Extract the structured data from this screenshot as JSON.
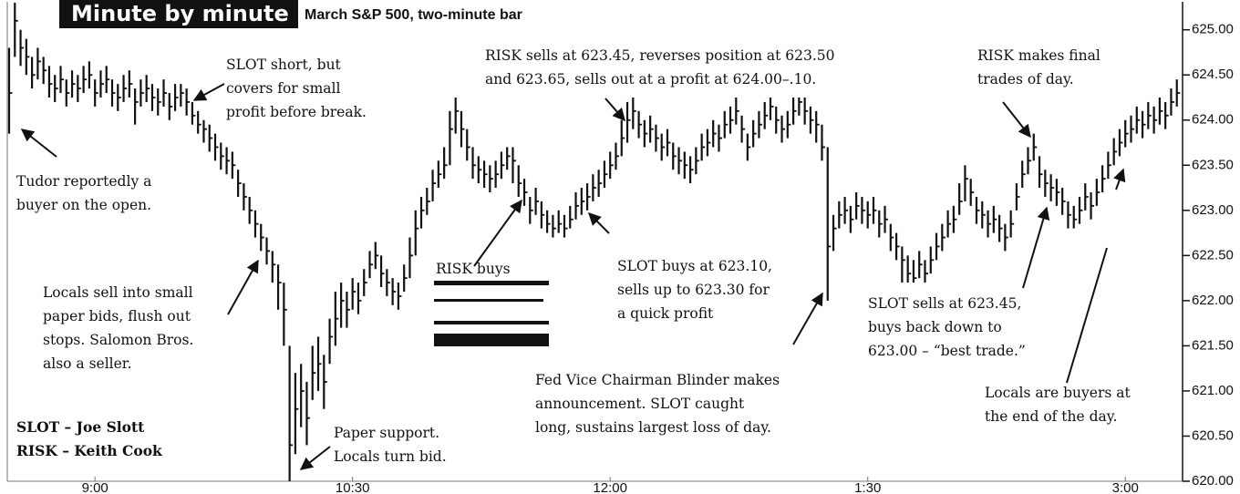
{
  "chart_data": {
    "type": "ohlc",
    "title": "Minute by minute",
    "subtitle": "March S&P 500, two-minute bar",
    "color": "#111111",
    "x": [
      0,
      2,
      4,
      6,
      8,
      10,
      12,
      14,
      16,
      18,
      20,
      22,
      24,
      26,
      28,
      30,
      32,
      34,
      36,
      38,
      40,
      42,
      44,
      46,
      48,
      50,
      52,
      54,
      56,
      58,
      60,
      62,
      64,
      66,
      68,
      70,
      72,
      74,
      76,
      78,
      80,
      82,
      84,
      86,
      88,
      90,
      92,
      94,
      96,
      98,
      100,
      102,
      104,
      106,
      108,
      110,
      112,
      114,
      116,
      118,
      120,
      122,
      124,
      126,
      128,
      130,
      132,
      134,
      136,
      138,
      140,
      142,
      144,
      146,
      148,
      150,
      152,
      154,
      156,
      158,
      160,
      162,
      164,
      166,
      168,
      170,
      172,
      174,
      176,
      178,
      180,
      182,
      184,
      186,
      188,
      190,
      192,
      194,
      196,
      198,
      200,
      202,
      204,
      206,
      208,
      210,
      212,
      214,
      216,
      218,
      220,
      222,
      224,
      226,
      228,
      230,
      232,
      234,
      236,
      238,
      240,
      242,
      244,
      246,
      248,
      250,
      252,
      254,
      256,
      258,
      260,
      262,
      264,
      266,
      268,
      270,
      272,
      274,
      276,
      278,
      280,
      282,
      284,
      286,
      288,
      290,
      292,
      294,
      296,
      298,
      300,
      302,
      304,
      306,
      308,
      310,
      312,
      314,
      316,
      318,
      320,
      322,
      324,
      326,
      328,
      330,
      332,
      334,
      336,
      338,
      340,
      342,
      344,
      346,
      348,
      350,
      352,
      354,
      356,
      358,
      360,
      362,
      364,
      366,
      368,
      370,
      372,
      374,
      376,
      378,
      380,
      382,
      384,
      386,
      388,
      390,
      392,
      394,
      396,
      398,
      400,
      402,
      404,
      406,
      408
    ],
    "high": [
      624.8,
      625.3,
      625.0,
      624.9,
      624.7,
      624.8,
      624.7,
      624.6,
      624.5,
      624.6,
      624.45,
      624.55,
      624.5,
      624.6,
      624.65,
      624.45,
      624.55,
      624.6,
      624.45,
      624.4,
      624.5,
      624.55,
      624.35,
      624.45,
      624.5,
      624.4,
      624.35,
      624.45,
      624.3,
      624.4,
      624.4,
      624.35,
      624.2,
      624.1,
      624.0,
      623.95,
      623.85,
      623.75,
      623.7,
      623.65,
      623.45,
      623.3,
      623.15,
      623.0,
      622.85,
      622.7,
      622.55,
      622.4,
      622.2,
      621.5,
      621.2,
      621.3,
      621.1,
      621.5,
      621.6,
      621.4,
      621.8,
      622.1,
      622.2,
      622.1,
      622.25,
      622.2,
      622.35,
      622.55,
      622.65,
      622.5,
      622.35,
      622.25,
      622.2,
      622.4,
      622.7,
      623.0,
      623.15,
      623.25,
      623.45,
      623.55,
      623.7,
      624.1,
      624.25,
      624.1,
      623.9,
      623.7,
      623.6,
      623.55,
      623.5,
      623.55,
      623.65,
      623.7,
      623.7,
      623.5,
      623.35,
      623.15,
      623.25,
      623.1,
      623.0,
      622.95,
      623.0,
      622.95,
      623.05,
      623.2,
      623.25,
      623.3,
      623.4,
      623.45,
      623.55,
      623.65,
      623.75,
      624.0,
      624.2,
      624.25,
      624.1,
      624.0,
      624.05,
      623.95,
      623.85,
      623.9,
      623.75,
      623.7,
      623.65,
      623.6,
      623.7,
      623.85,
      623.9,
      624.0,
      623.95,
      624.1,
      624.15,
      624.25,
      624.05,
      623.85,
      624.0,
      624.1,
      624.2,
      624.25,
      624.15,
      624.05,
      624.1,
      624.25,
      624.25,
      624.25,
      624.15,
      624.1,
      623.95,
      623.7,
      622.95,
      623.1,
      623.15,
      623.05,
      623.2,
      623.15,
      623.1,
      623.15,
      623.0,
      623.05,
      622.85,
      622.75,
      622.6,
      622.5,
      622.45,
      622.55,
      622.45,
      622.6,
      622.75,
      622.85,
      623.0,
      623.05,
      623.3,
      623.5,
      623.35,
      623.15,
      623.1,
      623.0,
      623.05,
      622.95,
      622.85,
      623.0,
      623.3,
      623.55,
      623.7,
      623.85,
      623.6,
      623.45,
      623.4,
      623.35,
      623.25,
      623.1,
      623.05,
      623.15,
      623.3,
      623.2,
      623.35,
      623.5,
      623.65,
      623.8,
      623.9,
      624.0,
      624.05,
      624.15,
      624.1,
      624.2,
      624.15,
      624.25,
      624.2,
      624.35,
      624.45
    ],
    "low": [
      623.85,
      624.7,
      624.6,
      624.5,
      624.35,
      624.45,
      624.4,
      624.25,
      624.2,
      624.3,
      624.15,
      624.25,
      624.2,
      624.3,
      624.35,
      624.15,
      624.25,
      624.3,
      624.15,
      624.1,
      624.2,
      624.25,
      623.95,
      624.15,
      624.2,
      624.1,
      624.05,
      624.15,
      624.0,
      624.1,
      624.15,
      624.05,
      623.95,
      623.85,
      623.75,
      623.65,
      623.55,
      623.45,
      623.4,
      623.35,
      623.15,
      623.0,
      622.85,
      622.7,
      622.55,
      622.4,
      622.2,
      621.9,
      621.5,
      620.0,
      620.3,
      620.6,
      620.4,
      620.9,
      621.0,
      620.8,
      621.3,
      621.5,
      621.7,
      621.7,
      621.9,
      621.85,
      622.05,
      622.25,
      622.35,
      622.15,
      622.05,
      621.95,
      621.9,
      622.1,
      622.25,
      622.5,
      622.8,
      622.95,
      623.1,
      623.25,
      623.35,
      623.5,
      623.85,
      623.7,
      623.55,
      623.35,
      623.3,
      623.25,
      623.2,
      623.25,
      623.35,
      623.45,
      623.3,
      623.15,
      623.05,
      622.85,
      622.95,
      622.8,
      622.75,
      622.7,
      622.75,
      622.7,
      622.8,
      622.9,
      622.95,
      623.0,
      623.1,
      623.15,
      623.25,
      623.35,
      623.45,
      623.6,
      623.75,
      623.9,
      623.8,
      623.7,
      623.75,
      623.65,
      623.55,
      623.6,
      623.45,
      623.4,
      623.35,
      623.3,
      623.4,
      623.55,
      623.6,
      623.7,
      623.65,
      623.8,
      623.85,
      623.95,
      623.75,
      623.55,
      623.7,
      623.8,
      623.9,
      624.0,
      623.85,
      623.75,
      623.8,
      623.95,
      624.05,
      623.95,
      623.85,
      623.75,
      623.55,
      622.0,
      622.55,
      622.8,
      622.85,
      622.75,
      622.9,
      622.85,
      622.8,
      622.85,
      622.7,
      622.75,
      622.55,
      622.45,
      622.2,
      622.2,
      622.2,
      622.25,
      622.2,
      622.3,
      622.45,
      622.55,
      622.7,
      622.75,
      622.95,
      623.1,
      623.05,
      622.85,
      622.8,
      622.7,
      622.75,
      622.65,
      622.55,
      622.7,
      623.0,
      623.25,
      623.4,
      623.55,
      623.25,
      623.15,
      623.1,
      623.05,
      622.95,
      622.8,
      622.8,
      622.85,
      623.0,
      622.9,
      623.05,
      623.2,
      623.35,
      623.5,
      623.6,
      623.7,
      623.75,
      623.85,
      623.8,
      623.9,
      623.85,
      623.95,
      623.9,
      624.05,
      624.15
    ],
    "close": [
      624.3,
      625.1,
      624.8,
      624.7,
      624.5,
      624.65,
      624.55,
      624.4,
      624.35,
      624.45,
      624.3,
      624.4,
      624.35,
      624.45,
      624.5,
      624.3,
      624.4,
      624.45,
      624.3,
      624.25,
      624.35,
      624.4,
      624.2,
      624.3,
      624.35,
      624.25,
      624.2,
      624.3,
      624.15,
      624.25,
      624.3,
      624.2,
      624.05,
      623.95,
      623.9,
      623.8,
      623.7,
      623.6,
      623.55,
      623.5,
      623.3,
      623.15,
      623.0,
      622.85,
      622.7,
      622.55,
      622.4,
      622.2,
      621.9,
      620.4,
      620.8,
      621.0,
      620.7,
      621.2,
      621.3,
      621.1,
      621.6,
      621.8,
      622.0,
      621.9,
      622.1,
      622.0,
      622.2,
      622.4,
      622.5,
      622.3,
      622.2,
      622.1,
      622.05,
      622.25,
      622.5,
      622.8,
      623.0,
      623.1,
      623.3,
      623.4,
      623.5,
      623.9,
      624.1,
      623.9,
      623.7,
      623.5,
      623.45,
      623.4,
      623.35,
      623.4,
      623.5,
      623.6,
      623.55,
      623.3,
      623.2,
      623.0,
      623.1,
      622.95,
      622.85,
      622.8,
      622.85,
      622.8,
      622.9,
      623.05,
      623.1,
      623.15,
      623.25,
      623.3,
      623.4,
      623.5,
      623.6,
      623.8,
      624.0,
      624.1,
      623.95,
      623.85,
      623.9,
      623.8,
      623.7,
      623.75,
      623.6,
      623.55,
      623.5,
      623.45,
      623.55,
      623.7,
      623.75,
      623.85,
      623.8,
      623.95,
      624.0,
      624.1,
      623.9,
      623.7,
      623.85,
      623.95,
      624.05,
      624.15,
      624.0,
      623.9,
      623.95,
      624.1,
      624.2,
      624.1,
      624.0,
      623.95,
      623.7,
      622.6,
      622.8,
      622.95,
      623.0,
      622.9,
      623.05,
      623.0,
      622.95,
      623.0,
      622.85,
      622.9,
      622.7,
      622.6,
      622.45,
      622.3,
      622.25,
      622.4,
      622.3,
      622.45,
      622.6,
      622.7,
      622.85,
      622.9,
      623.1,
      623.35,
      623.2,
      623.0,
      622.95,
      622.85,
      622.9,
      622.8,
      622.7,
      622.85,
      623.15,
      623.4,
      623.55,
      623.7,
      623.4,
      623.3,
      623.25,
      623.2,
      623.1,
      622.95,
      622.9,
      623.0,
      623.15,
      623.05,
      623.2,
      623.35,
      623.5,
      623.65,
      623.75,
      623.85,
      623.9,
      624.0,
      623.95,
      624.05,
      624.0,
      624.1,
      624.05,
      624.2,
      624.3
    ],
    "xlim": [
      0,
      410
    ],
    "xticks": [
      {
        "value": 30,
        "label": "9:00"
      },
      {
        "value": 120,
        "label": "10:30"
      },
      {
        "value": 210,
        "label": "12:00"
      },
      {
        "value": 300,
        "label": "1:30"
      },
      {
        "value": 390,
        "label": "3:00"
      }
    ],
    "ylim": [
      620,
      625.33
    ],
    "yticks": [
      {
        "value": 620,
        "label": "620.00"
      },
      {
        "value": 620.5,
        "label": "620.50"
      },
      {
        "value": 621,
        "label": "621.00"
      },
      {
        "value": 621.5,
        "label": "621.50"
      },
      {
        "value": 622,
        "label": "622.00"
      },
      {
        "value": 622.5,
        "label": "622.50"
      },
      {
        "value": 623,
        "label": "623.00"
      },
      {
        "value": 623.5,
        "label": "623.50"
      },
      {
        "value": 624,
        "label": "624.00"
      },
      {
        "value": 624.5,
        "label": "624.50"
      },
      {
        "value": 625,
        "label": "625.00"
      }
    ],
    "annotations": [
      {
        "lines": [
          "SLOT short, but",
          "covers for small",
          "profit before break."
        ]
      },
      {
        "lines": [
          "Tudor reportedly a",
          "buyer on the open."
        ]
      },
      {
        "lines": [
          "Locals sell into small",
          "paper bids, flush out",
          "stops. Salomon Bros.",
          "also a seller."
        ]
      },
      {
        "lines": [
          "Paper support.",
          "Locals turn bid."
        ]
      },
      {
        "lines": [
          "RISK sells at 623.45, reverses position at 623.50",
          "and 623.65, sells out at a profit at 624.00–.10."
        ]
      },
      {
        "lines": [
          "RISK buys"
        ]
      },
      {
        "lines": [
          "SLOT buys at 623.10,",
          "sells up to 623.30 for",
          "a quick profit"
        ]
      },
      {
        "lines": [
          "Fed Vice Chairman Blinder makes",
          "announcement. SLOT caught",
          "long, sustains largest loss of day."
        ]
      },
      {
        "lines": [
          "SLOT sells at 623.45,",
          "buys back down to",
          "623.00 – “best trade.”"
        ]
      },
      {
        "lines": [
          "RISK makes final",
          "trades of day."
        ]
      },
      {
        "lines": [
          "Locals are buyers at",
          "the end of the day."
        ]
      }
    ],
    "key": [
      "SLOT – Joe Slott",
      "RISK – Keith Cook"
    ]
  }
}
